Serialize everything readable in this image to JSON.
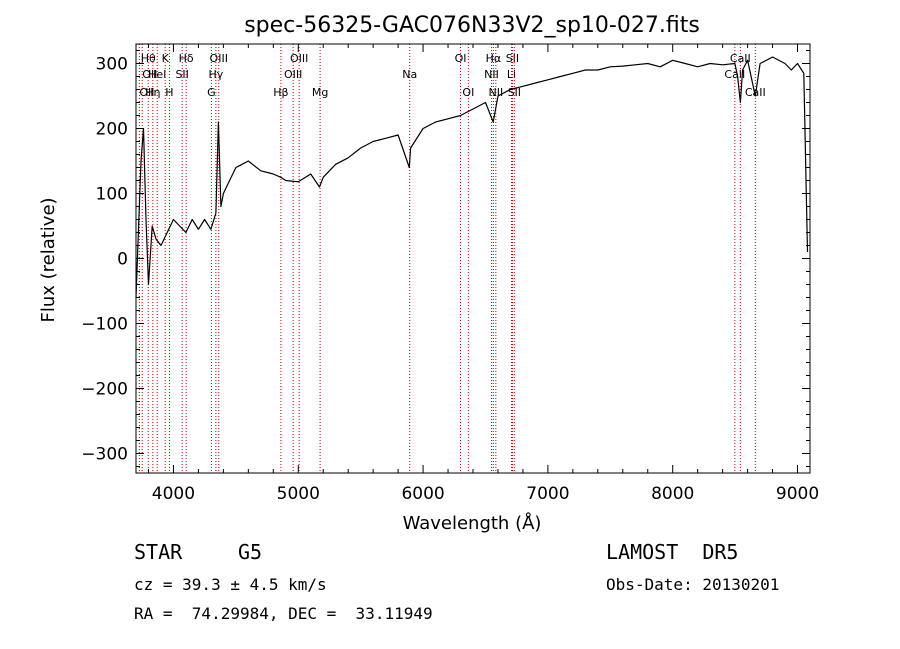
{
  "chart_data": {
    "type": "line",
    "title": "spec-56325-GAC076N33V2_sp10-027.fits",
    "xlabel": "Wavelength (Å)",
    "ylabel": "Flux (relative)",
    "xlim": [
      3700,
      9100
    ],
    "ylim": [
      -330,
      330
    ],
    "xticks": [
      4000,
      5000,
      6000,
      7000,
      8000,
      9000
    ],
    "yticks": [
      -300,
      -200,
      -100,
      0,
      100,
      200,
      300
    ],
    "grid": false,
    "line_color": "#000000",
    "marker_color": "#c00000",
    "series": [
      {
        "x": [
          3700,
          3740,
          3760,
          3780,
          3800,
          3830,
          3860,
          3900,
          3950,
          4000,
          4050,
          4100,
          4150,
          4200,
          4250,
          4300,
          4340,
          4360,
          4380,
          4400,
          4450,
          4500,
          4550,
          4600,
          4700,
          4800,
          4860,
          4900,
          5000,
          5100,
          5170,
          5200,
          5300,
          5400,
          5500,
          5600,
          5700,
          5800,
          5890,
          5900,
          6000,
          6100,
          6200,
          6300,
          6400,
          6500,
          6562,
          6600,
          6700,
          6800,
          6900,
          7000,
          7100,
          7200,
          7300,
          7400,
          7500,
          7600,
          7700,
          7800,
          7900,
          8000,
          8100,
          8200,
          8300,
          8400,
          8498,
          8520,
          8542,
          8560,
          8600,
          8662,
          8700,
          8800,
          8900,
          8950,
          9000,
          9050,
          9080
        ],
        "y": [
          -60,
          150,
          200,
          60,
          -40,
          50,
          30,
          20,
          40,
          60,
          50,
          40,
          60,
          45,
          60,
          45,
          70,
          210,
          80,
          100,
          120,
          140,
          145,
          150,
          135,
          130,
          125,
          120,
          118,
          130,
          110,
          125,
          145,
          155,
          170,
          180,
          185,
          190,
          140,
          170,
          200,
          210,
          215,
          220,
          230,
          240,
          210,
          250,
          260,
          265,
          270,
          275,
          280,
          285,
          290,
          290,
          295,
          296,
          298,
          300,
          295,
          305,
          300,
          295,
          300,
          298,
          300,
          280,
          240,
          290,
          305,
          250,
          300,
          310,
          300,
          290,
          300,
          285,
          10
        ]
      }
    ],
    "line_markers": [
      {
        "wavelength": 3727,
        "label": "OII",
        "row": 3,
        "align": "start"
      },
      {
        "wavelength": 3750,
        "label": "OII",
        "row": 2,
        "align": "start"
      },
      {
        "wavelength": 3798,
        "label": "Hθ",
        "row": 1,
        "align": "middle"
      },
      {
        "wavelength": 3835,
        "label": "Hη",
        "row": 3,
        "align": "middle"
      },
      {
        "wavelength": 3870,
        "label": "HeI",
        "row": 2,
        "align": "middle"
      },
      {
        "wavelength": 3934,
        "label": "K",
        "row": 1,
        "align": "middle"
      },
      {
        "wavelength": 3968,
        "label": "H",
        "row": 3,
        "align": "middle"
      },
      {
        "wavelength": 4070,
        "label": "SII",
        "row": 2,
        "align": "middle"
      },
      {
        "wavelength": 4102,
        "label": "Hδ",
        "row": 1,
        "align": "middle"
      },
      {
        "wavelength": 4304,
        "label": "G",
        "row": 3,
        "align": "middle"
      },
      {
        "wavelength": 4340,
        "label": "Hγ",
        "row": 2,
        "align": "middle"
      },
      {
        "wavelength": 4363,
        "label": "OIII",
        "row": 1,
        "align": "middle"
      },
      {
        "wavelength": 4861,
        "label": "Hβ",
        "row": 3,
        "align": "middle"
      },
      {
        "wavelength": 4959,
        "label": "OIII",
        "row": 2,
        "align": "middle"
      },
      {
        "wavelength": 5007,
        "label": "OIII",
        "row": 1,
        "align": "middle"
      },
      {
        "wavelength": 5175,
        "label": "Mg",
        "row": 3,
        "align": "middle"
      },
      {
        "wavelength": 5893,
        "label": "Na",
        "row": 2,
        "align": "middle"
      },
      {
        "wavelength": 6300,
        "label": "OI",
        "row": 1,
        "align": "middle"
      },
      {
        "wavelength": 6363,
        "label": "OI",
        "row": 3,
        "align": "middle"
      },
      {
        "wavelength": 6548,
        "label": "NII",
        "row": 2,
        "align": "middle"
      },
      {
        "wavelength": 6563,
        "label": "Hα",
        "row": 1,
        "align": "middle"
      },
      {
        "wavelength": 6583,
        "label": "NII",
        "row": 3,
        "align": "middle"
      },
      {
        "wavelength": 6708,
        "label": "Li",
        "row": 2,
        "align": "middle"
      },
      {
        "wavelength": 6716,
        "label": "SII",
        "row": 1,
        "align": "middle"
      },
      {
        "wavelength": 6731,
        "label": "SII",
        "row": 3,
        "align": "middle"
      },
      {
        "wavelength": 8498,
        "label": "CaII",
        "row": 2,
        "align": "middle"
      },
      {
        "wavelength": 8542,
        "label": "CaII",
        "row": 1,
        "align": "middle"
      },
      {
        "wavelength": 8662,
        "label": "CaII",
        "row": 3,
        "align": "middle"
      }
    ]
  },
  "info": {
    "class": "STAR",
    "subclass": "G5",
    "survey": "LAMOST  DR5",
    "redshift": "cz = 39.3 ± 4.5 km/s",
    "obs_date": "Obs-Date: 20130201",
    "coords": "RA =  74.29984, DEC =  33.11949"
  }
}
